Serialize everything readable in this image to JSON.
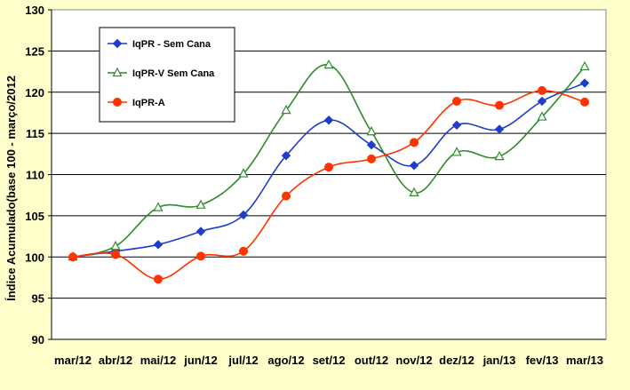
{
  "chart_data": {
    "type": "line",
    "title": "",
    "xlabel": "",
    "ylabel": "Índice Acumulado(base 100 - março/2012",
    "ylim": [
      90,
      130
    ],
    "y_ticks": [
      90,
      95,
      100,
      105,
      110,
      115,
      120,
      125,
      130
    ],
    "grid": "horizontal",
    "legend_position": "top-left",
    "categories": [
      "mar/12",
      "abr/12",
      "mai/12",
      "jun/12",
      "jul/12",
      "ago/12",
      "set/12",
      "out/12",
      "nov/12",
      "dez/12",
      "jan/13",
      "fev/13",
      "mar/13"
    ],
    "series": [
      {
        "name": "IqPR - Sem Cana",
        "color": "#1f3ccc",
        "marker": "diamond",
        "values": [
          100.0,
          100.7,
          101.5,
          103.1,
          105.1,
          112.3,
          116.6,
          113.6,
          111.1,
          116.0,
          115.5,
          118.9,
          121.1
        ]
      },
      {
        "name": "IqPR-V Sem Cana",
        "color": "#2e8b2e",
        "marker": "triangle",
        "values": [
          100.0,
          101.3,
          106.0,
          106.3,
          110.1,
          117.8,
          123.3,
          115.2,
          107.8,
          112.7,
          112.2,
          117.0,
          123.1
        ]
      },
      {
        "name": "IqPR-A",
        "color": "#ff3300",
        "marker": "circle",
        "values": [
          100.0,
          100.3,
          97.3,
          100.1,
          100.7,
          107.4,
          110.9,
          111.9,
          113.9,
          118.9,
          118.4,
          120.2,
          118.8
        ]
      }
    ]
  }
}
